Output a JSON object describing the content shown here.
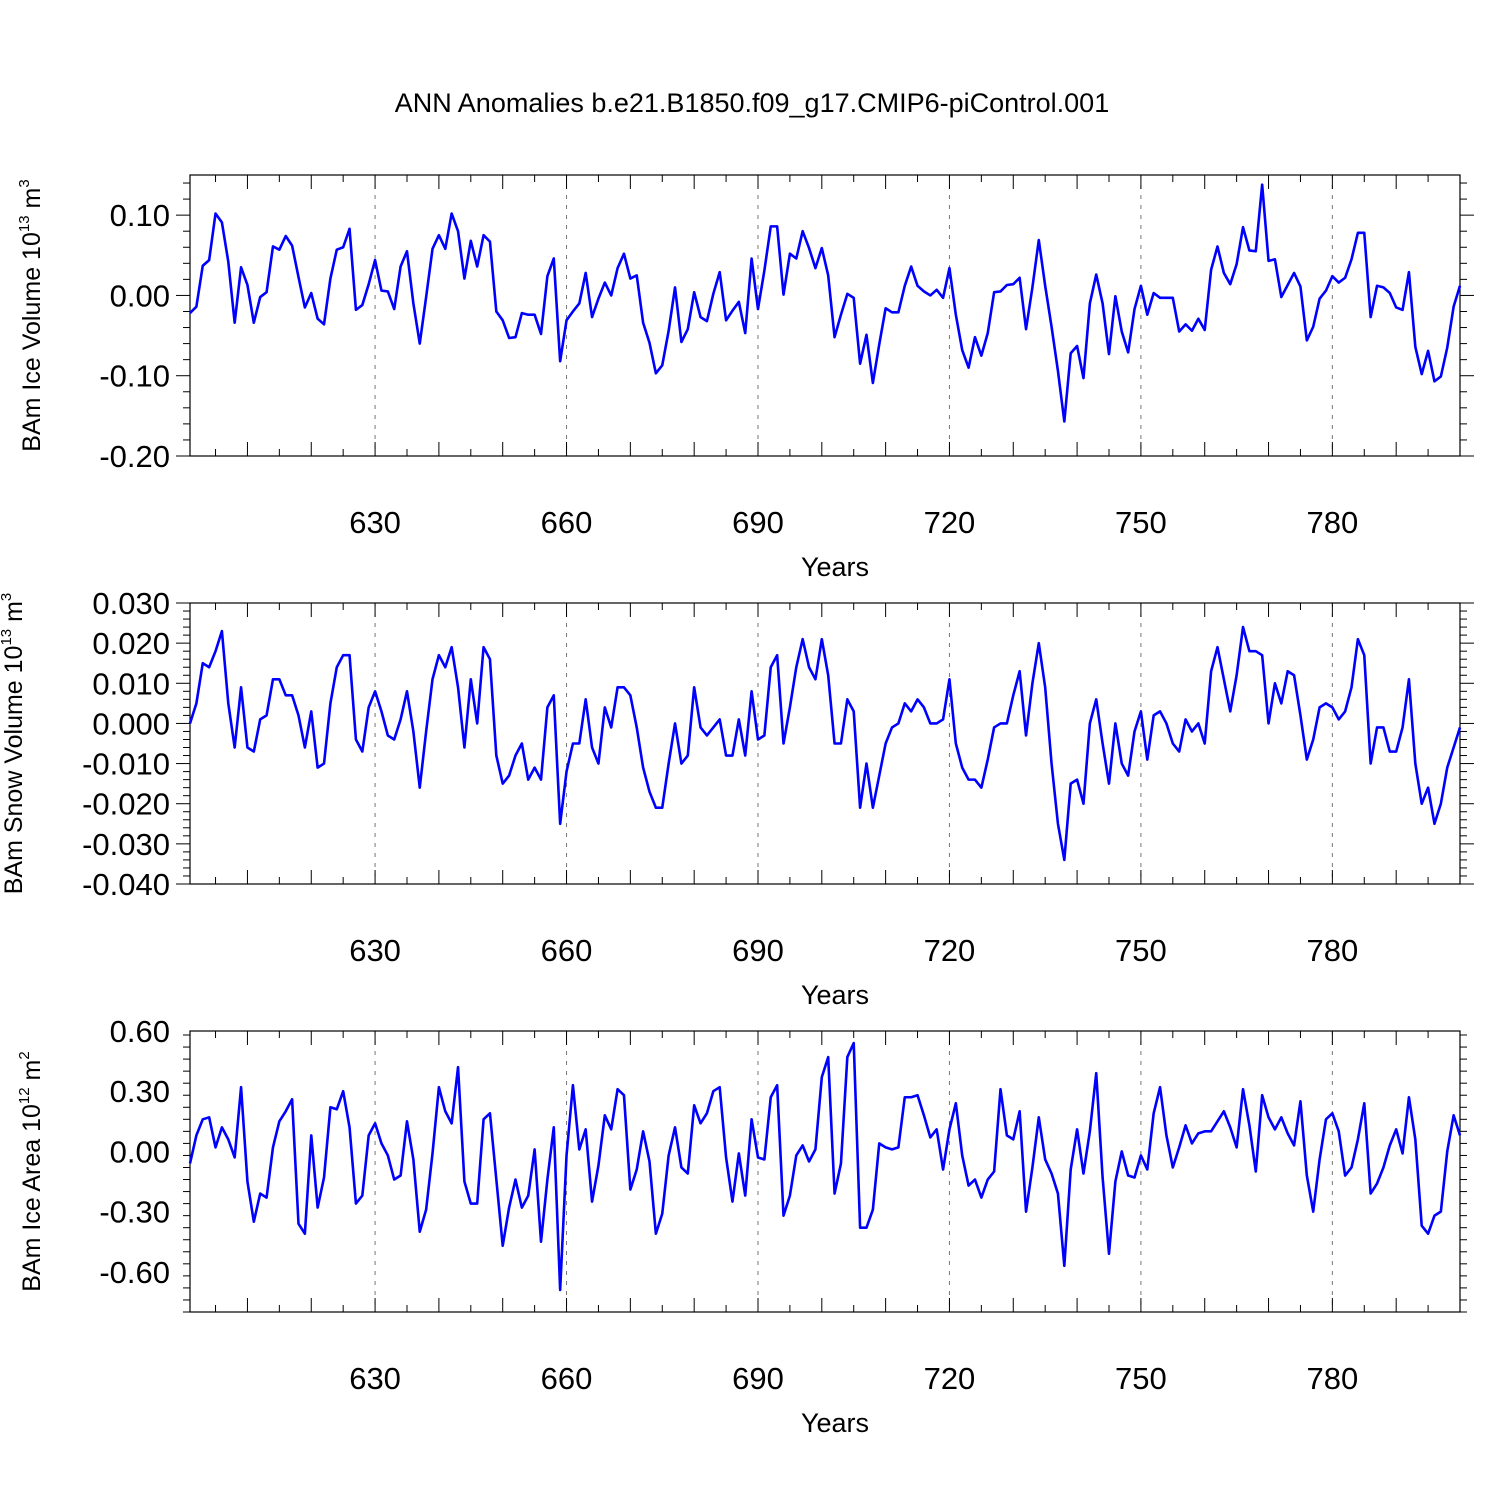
{
  "title": "ANN Anomalies b.e21.B1850.f09_g17.CMIP6-piControl.001",
  "line_color": "#0000ff",
  "chart_data": [
    {
      "type": "line",
      "ylabel": {
        "pre": "BAm Ice Volume 10",
        "sup": "13",
        "unit": " m",
        "unit_sup": "3"
      },
      "xlabel": "Years",
      "xlim": [
        601,
        800
      ],
      "ylim": [
        -0.2,
        0.15
      ],
      "xticks": [
        630,
        660,
        690,
        720,
        750,
        780
      ],
      "xtick_labels": [
        "630",
        "660",
        "690",
        "720",
        "750",
        "780"
      ],
      "yticks": [
        0.1,
        0.0,
        -0.1,
        -0.2
      ],
      "ytick_labels": [
        "0.10",
        "0.00",
        "-0.10",
        "-0.20"
      ],
      "x_start": 601,
      "values": [
        -0.022,
        -0.014,
        0.037,
        0.044,
        0.102,
        0.091,
        0.042,
        -0.034,
        0.035,
        0.013,
        -0.034,
        -0.002,
        0.004,
        0.061,
        0.057,
        0.074,
        0.062,
        0.023,
        -0.015,
        0.003,
        -0.029,
        -0.036,
        0.021,
        0.057,
        0.06,
        0.083,
        -0.018,
        -0.012,
        0.014,
        0.044,
        0.006,
        0.005,
        -0.017,
        0.036,
        0.055,
        -0.01,
        -0.06,
        -0.002,
        0.058,
        0.075,
        0.058,
        0.102,
        0.08,
        0.021,
        0.068,
        0.036,
        0.075,
        0.067,
        -0.02,
        -0.031,
        -0.053,
        -0.052,
        -0.022,
        -0.024,
        -0.024,
        -0.048,
        0.024,
        0.046,
        -0.082,
        -0.031,
        -0.02,
        -0.01,
        0.028,
        -0.027,
        -0.004,
        0.016,
        0.0,
        0.034,
        0.052,
        0.021,
        0.025,
        -0.034,
        -0.059,
        -0.097,
        -0.087,
        -0.044,
        0.01,
        -0.058,
        -0.042,
        0.004,
        -0.027,
        -0.032,
        0.002,
        0.029,
        -0.031,
        -0.019,
        -0.008,
        -0.047,
        0.046,
        -0.017,
        0.031,
        0.086,
        0.086,
        0.001,
        0.052,
        0.046,
        0.08,
        0.059,
        0.034,
        0.059,
        0.025,
        -0.052,
        -0.024,
        0.002,
        -0.003,
        -0.085,
        -0.049,
        -0.109,
        -0.061,
        -0.016,
        -0.021,
        -0.021,
        0.012,
        0.036,
        0.012,
        0.005,
        0.0,
        0.007,
        -0.003,
        0.034,
        -0.024,
        -0.068,
        -0.09,
        -0.052,
        -0.075,
        -0.047,
        0.004,
        0.005,
        0.013,
        0.014,
        0.022,
        -0.042,
        0.01,
        0.069,
        0.012,
        -0.039,
        -0.094,
        -0.157,
        -0.072,
        -0.063,
        -0.103,
        -0.01,
        0.026,
        -0.01,
        -0.073,
        -0.001,
        -0.045,
        -0.071,
        -0.017,
        0.012,
        -0.024,
        0.003,
        -0.003,
        -0.003,
        -0.003,
        -0.045,
        -0.036,
        -0.044,
        -0.029,
        -0.043,
        0.032,
        0.061,
        0.028,
        0.014,
        0.039,
        0.085,
        0.056,
        0.055,
        0.138,
        0.043,
        0.045,
        -0.002,
        0.013,
        0.028,
        0.011,
        -0.056,
        -0.039,
        -0.004,
        0.006,
        0.024,
        0.016,
        0.022,
        0.045,
        0.078,
        0.078,
        -0.027,
        0.012,
        0.01,
        0.003,
        -0.015,
        -0.018,
        0.029,
        -0.064,
        -0.098,
        -0.069,
        -0.107,
        -0.101,
        -0.065,
        -0.014,
        0.012
      ]
    },
    {
      "type": "line",
      "ylabel": {
        "pre": "BAm Snow Volume 10",
        "sup": "13",
        "unit": " m",
        "unit_sup": "3"
      },
      "xlabel": "Years",
      "xlim": [
        601,
        800
      ],
      "ylim": [
        -0.04,
        0.03
      ],
      "xticks": [
        630,
        660,
        690,
        720,
        750,
        780
      ],
      "xtick_labels": [
        "630",
        "660",
        "690",
        "720",
        "750",
        "780"
      ],
      "yticks": [
        0.03,
        0.02,
        0.01,
        0.0,
        -0.01,
        -0.02,
        -0.03,
        -0.04
      ],
      "ytick_labels": [
        "0.030",
        "0.020",
        "0.010",
        "0.000",
        "-0.010",
        "-0.020",
        "-0.030",
        "-0.040"
      ],
      "x_start": 601,
      "values": [
        0.0,
        0.005,
        0.015,
        0.014,
        0.018,
        0.023,
        0.005,
        -0.006,
        0.009,
        -0.006,
        -0.007,
        0.001,
        0.002,
        0.011,
        0.011,
        0.007,
        0.007,
        0.002,
        -0.006,
        0.003,
        -0.011,
        -0.01,
        0.005,
        0.014,
        0.017,
        0.017,
        -0.004,
        -0.007,
        0.004,
        0.008,
        0.003,
        -0.003,
        -0.004,
        0.001,
        0.008,
        -0.002,
        -0.016,
        -0.002,
        0.011,
        0.017,
        0.014,
        0.019,
        0.009,
        -0.006,
        0.011,
        0.0,
        0.019,
        0.016,
        -0.008,
        -0.015,
        -0.013,
        -0.008,
        -0.005,
        -0.014,
        -0.011,
        -0.014,
        0.004,
        0.007,
        -0.025,
        -0.012,
        -0.005,
        -0.005,
        0.006,
        -0.006,
        -0.01,
        0.004,
        -0.001,
        0.009,
        0.009,
        0.007,
        -0.001,
        -0.011,
        -0.017,
        -0.021,
        -0.021,
        -0.01,
        0.0,
        -0.01,
        -0.008,
        0.009,
        -0.001,
        -0.003,
        -0.001,
        0.001,
        -0.008,
        -0.008,
        0.001,
        -0.008,
        0.008,
        -0.004,
        -0.003,
        0.014,
        0.017,
        -0.005,
        0.004,
        0.014,
        0.021,
        0.014,
        0.011,
        0.021,
        0.012,
        -0.005,
        -0.005,
        0.006,
        0.003,
        -0.021,
        -0.01,
        -0.021,
        -0.013,
        -0.005,
        -0.001,
        0.0,
        0.005,
        0.003,
        0.006,
        0.004,
        0.0,
        0.0,
        0.001,
        0.011,
        -0.005,
        -0.011,
        -0.014,
        -0.014,
        -0.016,
        -0.009,
        -0.001,
        0.0,
        0.0,
        0.007,
        0.013,
        -0.003,
        0.01,
        0.02,
        0.009,
        -0.01,
        -0.025,
        -0.034,
        -0.015,
        -0.014,
        -0.02,
        0.0,
        0.006,
        -0.005,
        -0.015,
        0.0,
        -0.01,
        -0.013,
        -0.002,
        0.003,
        -0.009,
        0.002,
        0.003,
        0.0,
        -0.005,
        -0.007,
        0.001,
        -0.002,
        0.0,
        -0.005,
        0.013,
        0.019,
        0.011,
        0.003,
        0.012,
        0.024,
        0.018,
        0.018,
        0.017,
        0.0,
        0.01,
        0.005,
        0.013,
        0.012,
        0.002,
        -0.009,
        -0.004,
        0.004,
        0.005,
        0.004,
        0.001,
        0.003,
        0.009,
        0.021,
        0.017,
        -0.01,
        -0.001,
        -0.001,
        -0.007,
        -0.007,
        -0.001,
        0.011,
        -0.01,
        -0.02,
        -0.016,
        -0.025,
        -0.02,
        -0.011,
        -0.006,
        -0.001
      ]
    },
    {
      "type": "line",
      "ylabel": {
        "pre": "BAm Ice Area 10",
        "sup": "12",
        "unit": " m",
        "unit_sup": "2"
      },
      "xlabel": "Years",
      "xlim": [
        601,
        800
      ],
      "ylim": [
        -0.8,
        0.6
      ],
      "xticks": [
        630,
        660,
        690,
        720,
        750,
        780
      ],
      "xtick_labels": [
        "630",
        "660",
        "690",
        "720",
        "750",
        "780"
      ],
      "yticks": [
        0.6,
        0.3,
        0.0,
        -0.3,
        -0.6
      ],
      "ytick_labels": [
        "0.60",
        "0.30",
        "0.00",
        "-0.30",
        "-0.60"
      ],
      "x_start": 601,
      "values": [
        -0.06,
        0.08,
        0.16,
        0.17,
        0.02,
        0.12,
        0.06,
        -0.03,
        0.32,
        -0.15,
        -0.35,
        -0.21,
        -0.23,
        0.02,
        0.15,
        0.2,
        0.26,
        -0.36,
        -0.41,
        0.08,
        -0.28,
        -0.13,
        0.22,
        0.21,
        0.3,
        0.12,
        -0.26,
        -0.22,
        0.08,
        0.14,
        0.04,
        -0.02,
        -0.14,
        -0.12,
        0.15,
        -0.04,
        -0.4,
        -0.29,
        -0.01,
        0.32,
        0.2,
        0.14,
        0.42,
        -0.15,
        -0.26,
        -0.26,
        0.16,
        0.19,
        -0.14,
        -0.47,
        -0.28,
        -0.14,
        -0.28,
        -0.22,
        0.01,
        -0.45,
        -0.14,
        0.12,
        -0.69,
        -0.02,
        0.33,
        0.01,
        0.11,
        -0.25,
        -0.07,
        0.18,
        0.11,
        0.31,
        0.28,
        -0.19,
        -0.09,
        0.1,
        -0.05,
        -0.41,
        -0.31,
        -0.02,
        0.12,
        -0.08,
        -0.11,
        0.23,
        0.14,
        0.19,
        0.3,
        0.32,
        -0.03,
        -0.25,
        -0.01,
        -0.22,
        0.16,
        -0.03,
        -0.04,
        0.27,
        0.33,
        -0.32,
        -0.22,
        -0.02,
        0.03,
        -0.05,
        0.01,
        0.37,
        0.47,
        -0.21,
        -0.06,
        0.47,
        0.54,
        -0.38,
        -0.38,
        -0.29,
        0.04,
        0.02,
        0.01,
        0.02,
        0.27,
        0.27,
        0.28,
        0.18,
        0.07,
        0.11,
        -0.09,
        0.11,
        0.24,
        -0.02,
        -0.17,
        -0.14,
        -0.23,
        -0.14,
        -0.1,
        0.31,
        0.08,
        0.06,
        0.2,
        -0.3,
        -0.08,
        0.17,
        -0.04,
        -0.11,
        -0.21,
        -0.57,
        -0.09,
        0.11,
        -0.11,
        0.1,
        0.39,
        -0.13,
        -0.51,
        -0.15,
        0.0,
        -0.12,
        -0.13,
        -0.02,
        -0.09,
        0.19,
        0.32,
        0.08,
        -0.08,
        0.02,
        0.13,
        0.04,
        0.09,
        0.1,
        0.1,
        0.15,
        0.2,
        0.12,
        0.02,
        0.31,
        0.13,
        -0.1,
        0.28,
        0.17,
        0.11,
        0.17,
        0.09,
        0.03,
        0.25,
        -0.12,
        -0.3,
        -0.04,
        0.16,
        0.19,
        0.1,
        -0.12,
        -0.08,
        0.06,
        0.24,
        -0.21,
        -0.16,
        -0.08,
        0.03,
        0.11,
        -0.01,
        0.27,
        0.06,
        -0.37,
        -0.41,
        -0.32,
        -0.3,
        0.0,
        0.18,
        0.08
      ]
    }
  ]
}
